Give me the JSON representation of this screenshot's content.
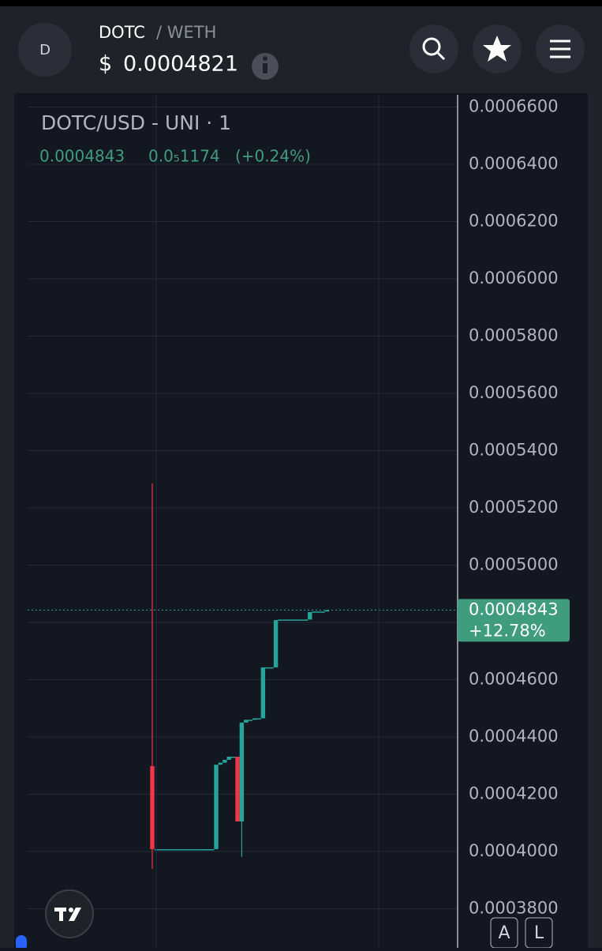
{
  "header": {
    "avatar": "D",
    "base": "DOTC",
    "quote": "/ WETH",
    "currency": "$",
    "price": "0.0004821"
  },
  "chart_data": {
    "type": "candlestick",
    "title": "DOTC/USD - UNI · 1",
    "legend_change": "0.0₅1174",
    "legend_change_pct": "(+0.24%)",
    "last_price": 0.0004843,
    "last_change": "+12.78%",
    "up_color": "#26a69a",
    "down_color": "#f23645",
    "categories": [
      null,
      null,
      null,
      null,
      null,
      null,
      null,
      null,
      null,
      null,
      null,
      null,
      null,
      null,
      null,
      null,
      null,
      null,
      null,
      null,
      null,
      null,
      null,
      null,
      null,
      null,
      null,
      null,
      null,
      null,
      null,
      null,
      null,
      null,
      null,
      null,
      null,
      null,
      null,
      null,
      null,
      null
    ],
    "open": [
      0.0004298,
      0.0004008,
      0.0004008,
      0.0004008,
      0.0004008,
      0.0004008,
      0.0004008,
      0.0004008,
      0.0004008,
      0.0004008,
      0.0004008,
      0.0004008,
      0.0004008,
      0.0004008,
      0.0004008,
      0.0004008,
      0.0004303,
      0.000431,
      0.000432,
      0.0004331,
      0.0004331,
      0.0004105,
      0.000445,
      0.000446,
      0.000446,
      0.0004465,
      0.0004465,
      0.0004643,
      0.0004643,
      0.0004643,
      0.0004808,
      0.000481,
      0.000481,
      0.000481,
      0.000481,
      0.000481,
      0.000481,
      0.000481,
      0.0004836,
      0.0004838,
      0.0004838,
      0.0004838
    ],
    "high": [
      0.0005286,
      0.0004008,
      0.0004008,
      0.0004008,
      0.0004008,
      0.0004008,
      0.0004008,
      0.0004008,
      0.0004008,
      0.0004008,
      0.0004008,
      0.0004008,
      0.0004008,
      0.0004008,
      0.0004008,
      0.0004303,
      0.000431,
      0.000432,
      0.0004331,
      0.0004331,
      0.0004331,
      0.000445,
      0.000446,
      0.000446,
      0.0004465,
      0.0004465,
      0.0004643,
      0.0004643,
      0.0004643,
      0.0004808,
      0.000481,
      0.000481,
      0.000481,
      0.000481,
      0.000481,
      0.000481,
      0.000481,
      0.0004836,
      0.0004838,
      0.0004838,
      0.0004838,
      0.0004843
    ],
    "low": [
      0.0003939,
      0.0004008,
      0.0004008,
      0.0004008,
      0.0004008,
      0.0004008,
      0.0004008,
      0.0004008,
      0.0004008,
      0.0004008,
      0.0004008,
      0.0004008,
      0.0004008,
      0.0004008,
      0.0004008,
      0.0004008,
      0.0004303,
      0.000431,
      0.000432,
      0.0004331,
      0.0004105,
      0.0003981,
      0.000445,
      0.000446,
      0.000446,
      0.0004465,
      0.0004465,
      0.0004643,
      0.0004643,
      0.0004643,
      0.0004808,
      0.000481,
      0.000481,
      0.000481,
      0.000481,
      0.000481,
      0.000481,
      0.000481,
      0.0004836,
      0.0004838,
      0.0004838,
      0.0004838
    ],
    "close": [
      0.0004008,
      0.0004008,
      0.0004008,
      0.0004008,
      0.0004008,
      0.0004008,
      0.0004008,
      0.0004008,
      0.0004008,
      0.0004008,
      0.0004008,
      0.0004008,
      0.0004008,
      0.0004008,
      0.0004008,
      0.0004303,
      0.000431,
      0.000432,
      0.0004331,
      0.0004331,
      0.0004105,
      0.000445,
      0.000446,
      0.000446,
      0.0004465,
      0.0004465,
      0.0004643,
      0.0004643,
      0.0004643,
      0.0004808,
      0.000481,
      0.000481,
      0.000481,
      0.000481,
      0.000481,
      0.000481,
      0.000481,
      0.0004836,
      0.0004838,
      0.0004838,
      0.0004838,
      0.0004843
    ],
    "ylim": [
      0.00036634,
      0.00066428
    ],
    "yticks": [
      {
        "value": 0.00066,
        "label": "0.0006600"
      },
      {
        "value": 0.00064,
        "label": "0.0006400"
      },
      {
        "value": 0.00062,
        "label": "0.0006200"
      },
      {
        "value": 0.0006,
        "label": "0.0006000"
      },
      {
        "value": 0.00058,
        "label": "0.0005800"
      },
      {
        "value": 0.00056,
        "label": "0.0005600"
      },
      {
        "value": 0.00054,
        "label": "0.0005400"
      },
      {
        "value": 0.00052,
        "label": "0.0005200"
      },
      {
        "value": 0.0005,
        "label": "0.0005000"
      },
      {
        "value": 0.00048,
        "label": "0.0004800"
      },
      {
        "value": 0.00046,
        "label": "0.0004600"
      },
      {
        "value": 0.00044,
        "label": "0.0004400"
      },
      {
        "value": 0.00042,
        "label": "0.0004200"
      },
      {
        "value": 0.0004,
        "label": "0.0004000"
      },
      {
        "value": 0.00038,
        "label": "0.0003800"
      }
    ],
    "grid": true
  },
  "buttons": {
    "auto": "A",
    "log": "L"
  }
}
